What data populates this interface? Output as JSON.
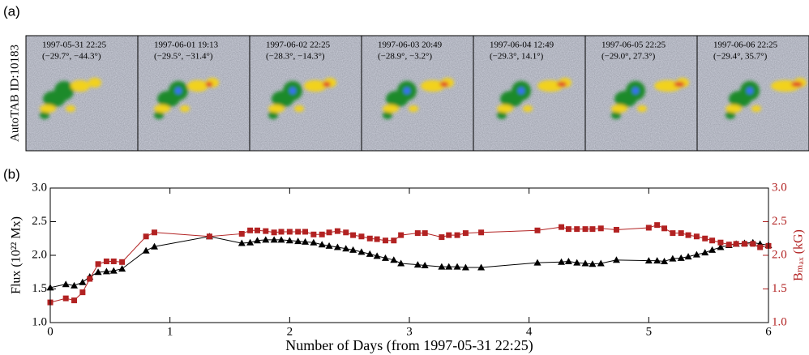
{
  "panel_a": {
    "label": "(a)",
    "ylabel": "AutoTAB ID:10183",
    "frames": [
      {
        "time": "1997-05-31 22:25",
        "coords": "(−29.7°, −44.3°)"
      },
      {
        "time": "1997-06-01 19:13",
        "coords": "(−29.5°, −31.4°)"
      },
      {
        "time": "1997-06-02 22:25",
        "coords": "(−28.3°, −14.3°)"
      },
      {
        "time": "1997-06-03 20:49",
        "coords": "(−28.9°, −3.2°)"
      },
      {
        "time": "1997-06-04 12:49",
        "coords": "(−29.3°, 14.1°)"
      },
      {
        "time": "1997-06-05 22:25",
        "coords": "(−29.0°, 27.3°)"
      },
      {
        "time": "1997-06-06 22:25",
        "coords": "(−29.4°, 35.7°)"
      }
    ]
  },
  "chart_data": {
    "type": "line",
    "label": "(b)",
    "xlabel": "Number of Days (from 1997-05-31 22:25)",
    "ylabel": "Flux (10²² Mx)",
    "y2label": "Bₘₐₓ (kG)",
    "x": [
      0,
      0.13,
      0.2,
      0.27,
      0.33,
      0.4,
      0.47,
      0.53,
      0.6,
      0.8,
      0.87,
      1.33,
      1.6,
      1.67,
      1.73,
      1.8,
      1.87,
      1.93,
      2.0,
      2.07,
      2.13,
      2.2,
      2.27,
      2.33,
      2.4,
      2.47,
      2.53,
      2.6,
      2.67,
      2.73,
      2.8,
      2.87,
      2.93,
      3.07,
      3.13,
      3.27,
      3.33,
      3.4,
      3.47,
      3.6,
      4.07,
      4.27,
      4.33,
      4.4,
      4.47,
      4.53,
      4.6,
      4.73,
      5.0,
      5.07,
      5.13,
      5.2,
      5.27,
      5.33,
      5.4,
      5.47,
      5.53,
      5.6,
      5.67,
      5.73,
      5.8,
      5.87,
      5.93,
      6.0
    ],
    "series": [
      {
        "color": "#000000",
        "marker": "triangle",
        "values": [
          1.52,
          1.57,
          1.55,
          1.6,
          1.68,
          1.75,
          1.76,
          1.77,
          1.8,
          2.07,
          2.13,
          2.28,
          2.18,
          2.19,
          2.22,
          2.23,
          2.23,
          2.23,
          2.22,
          2.21,
          2.2,
          2.19,
          2.16,
          2.14,
          2.12,
          2.1,
          2.08,
          2.05,
          2.02,
          1.99,
          1.96,
          1.93,
          1.88,
          1.86,
          1.85,
          1.83,
          1.83,
          1.83,
          1.82,
          1.82,
          1.89,
          1.9,
          1.91,
          1.89,
          1.88,
          1.87,
          1.88,
          1.93,
          1.92,
          1.92,
          1.91,
          1.95,
          1.96,
          1.98,
          2.01,
          2.04,
          2.08,
          2.12,
          2.15,
          2.17,
          2.18,
          2.19,
          2.17,
          2.15
        ]
      },
      {
        "color": "#b22222",
        "marker": "square",
        "axis": "y2",
        "values": [
          1.3,
          1.36,
          1.33,
          1.45,
          1.65,
          1.87,
          1.91,
          1.91,
          1.9,
          2.28,
          2.34,
          2.28,
          2.32,
          2.37,
          2.37,
          2.36,
          2.34,
          2.35,
          2.35,
          2.35,
          2.35,
          2.31,
          2.31,
          2.34,
          2.36,
          2.34,
          2.3,
          2.28,
          2.25,
          2.24,
          2.22,
          2.22,
          2.3,
          2.33,
          2.33,
          2.27,
          2.3,
          2.3,
          2.33,
          2.34,
          2.37,
          2.42,
          2.39,
          2.39,
          2.39,
          2.39,
          2.4,
          2.38,
          2.41,
          2.45,
          2.4,
          2.33,
          2.33,
          2.3,
          2.28,
          2.25,
          2.22,
          2.19,
          2.16,
          2.17,
          2.17,
          2.17,
          2.12,
          2.14
        ]
      }
    ],
    "xlim": [
      0,
      6
    ],
    "xticks": [
      0,
      1,
      2,
      3,
      4,
      5,
      6
    ],
    "ylim": [
      1,
      3
    ],
    "yticks": [
      {
        "value": 1,
        "label": "1.0"
      },
      {
        "value": 1.5,
        "label": "1.5"
      },
      {
        "value": 2,
        "label": "2.0"
      },
      {
        "value": 2.5,
        "label": "2.5"
      },
      {
        "value": 3,
        "label": "3.0"
      }
    ],
    "y2lim": [
      1,
      3
    ],
    "y2ticks": [
      {
        "value": 1,
        "label": "1.0"
      },
      {
        "value": 1.5,
        "label": "1.5"
      },
      {
        "value": 2,
        "label": "2.0"
      },
      {
        "value": 2.5,
        "label": "2.5"
      },
      {
        "value": 3,
        "label": "3.0"
      }
    ],
    "y2color": "#b22222"
  }
}
